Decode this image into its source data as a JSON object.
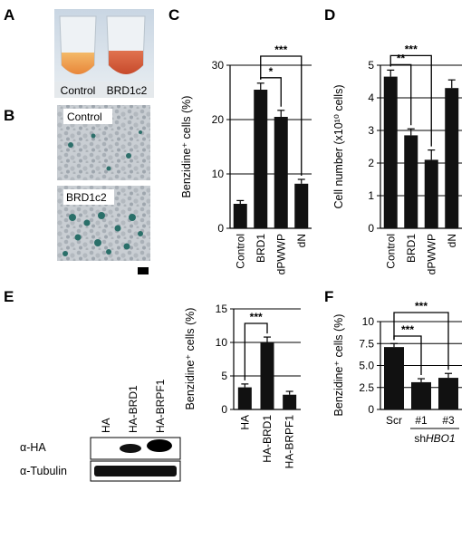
{
  "panel_letters": [
    "A",
    "B",
    "C",
    "D",
    "E",
    "F"
  ],
  "panelA": {
    "tube_labels": [
      "Control",
      "BRD1c2"
    ]
  },
  "panelB": {
    "image_labels": [
      "Control",
      "BRD1c2"
    ]
  },
  "panelE_blot": {
    "lanes": [
      "HA",
      "HA-BRD1",
      "HA-BRPF1"
    ],
    "rows": [
      "α-HA",
      "α-Tubulin"
    ]
  },
  "chart_data": [
    {
      "id": "C",
      "type": "bar",
      "categories": [
        "Control",
        "BRD1",
        "dPWWP",
        "dN"
      ],
      "values": [
        4.5,
        25.5,
        20.5,
        8.2
      ],
      "errors": [
        0.6,
        1.2,
        1.2,
        0.8
      ],
      "ylabel": "Benzidine⁺ cells (%)",
      "ylim": [
        0,
        30
      ],
      "yticks": [
        0,
        10,
        20,
        30
      ],
      "ytick_labels": [
        "0",
        "10",
        "20",
        "30"
      ],
      "grid": true,
      "significance": [
        {
          "from": 1,
          "to": 2,
          "label": "*"
        },
        {
          "from": 1,
          "to": 3,
          "label": "***"
        }
      ]
    },
    {
      "id": "D",
      "type": "bar",
      "categories": [
        "Control",
        "BRD1",
        "dPWWP",
        "dN"
      ],
      "values": [
        4.65,
        2.85,
        2.1,
        4.3
      ],
      "errors": [
        0.2,
        0.2,
        0.3,
        0.25
      ],
      "ylabel": "Cell number (x10¹⁰ cells)",
      "ylim": [
        0,
        5
      ],
      "yticks": [
        0,
        1,
        2,
        3,
        4,
        5
      ],
      "ytick_labels": [
        "0",
        "1",
        "2",
        "3",
        "4",
        "5"
      ],
      "grid": true,
      "significance": [
        {
          "from": 0,
          "to": 1,
          "label": "**"
        },
        {
          "from": 0,
          "to": 2,
          "label": "***"
        }
      ]
    },
    {
      "id": "E",
      "type": "bar",
      "categories": [
        "HA",
        "HA-BRD1",
        "HA-BRPF1"
      ],
      "values": [
        3.3,
        10.0,
        2.2
      ],
      "errors": [
        0.5,
        0.8,
        0.5
      ],
      "ylabel": "Benzidine⁺ cells (%)",
      "ylim": [
        0,
        15
      ],
      "yticks": [
        0,
        5,
        10,
        15
      ],
      "ytick_labels": [
        "0",
        "5",
        "10",
        "15"
      ],
      "grid": true,
      "significance": [
        {
          "from": 0,
          "to": 1,
          "label": "***"
        }
      ]
    },
    {
      "id": "F",
      "type": "bar",
      "categories": [
        "Scr",
        "#1",
        "#3"
      ],
      "values": [
        7.1,
        3.1,
        3.6
      ],
      "errors": [
        0.4,
        0.4,
        0.5
      ],
      "ylabel": "Benzidine⁺ cells (%)",
      "ylim": [
        0,
        10
      ],
      "yticks": [
        0,
        2.5,
        5,
        7.5,
        10
      ],
      "ytick_labels": [
        "0",
        "2.5",
        "5.0",
        "7.5",
        "10"
      ],
      "grid": true,
      "group_label_prefix": "sh",
      "group_label_gene": "HBO1",
      "significance": [
        {
          "from": 0,
          "to": 1,
          "label": "***"
        },
        {
          "from": 0,
          "to": 2,
          "label": "***"
        }
      ]
    }
  ]
}
